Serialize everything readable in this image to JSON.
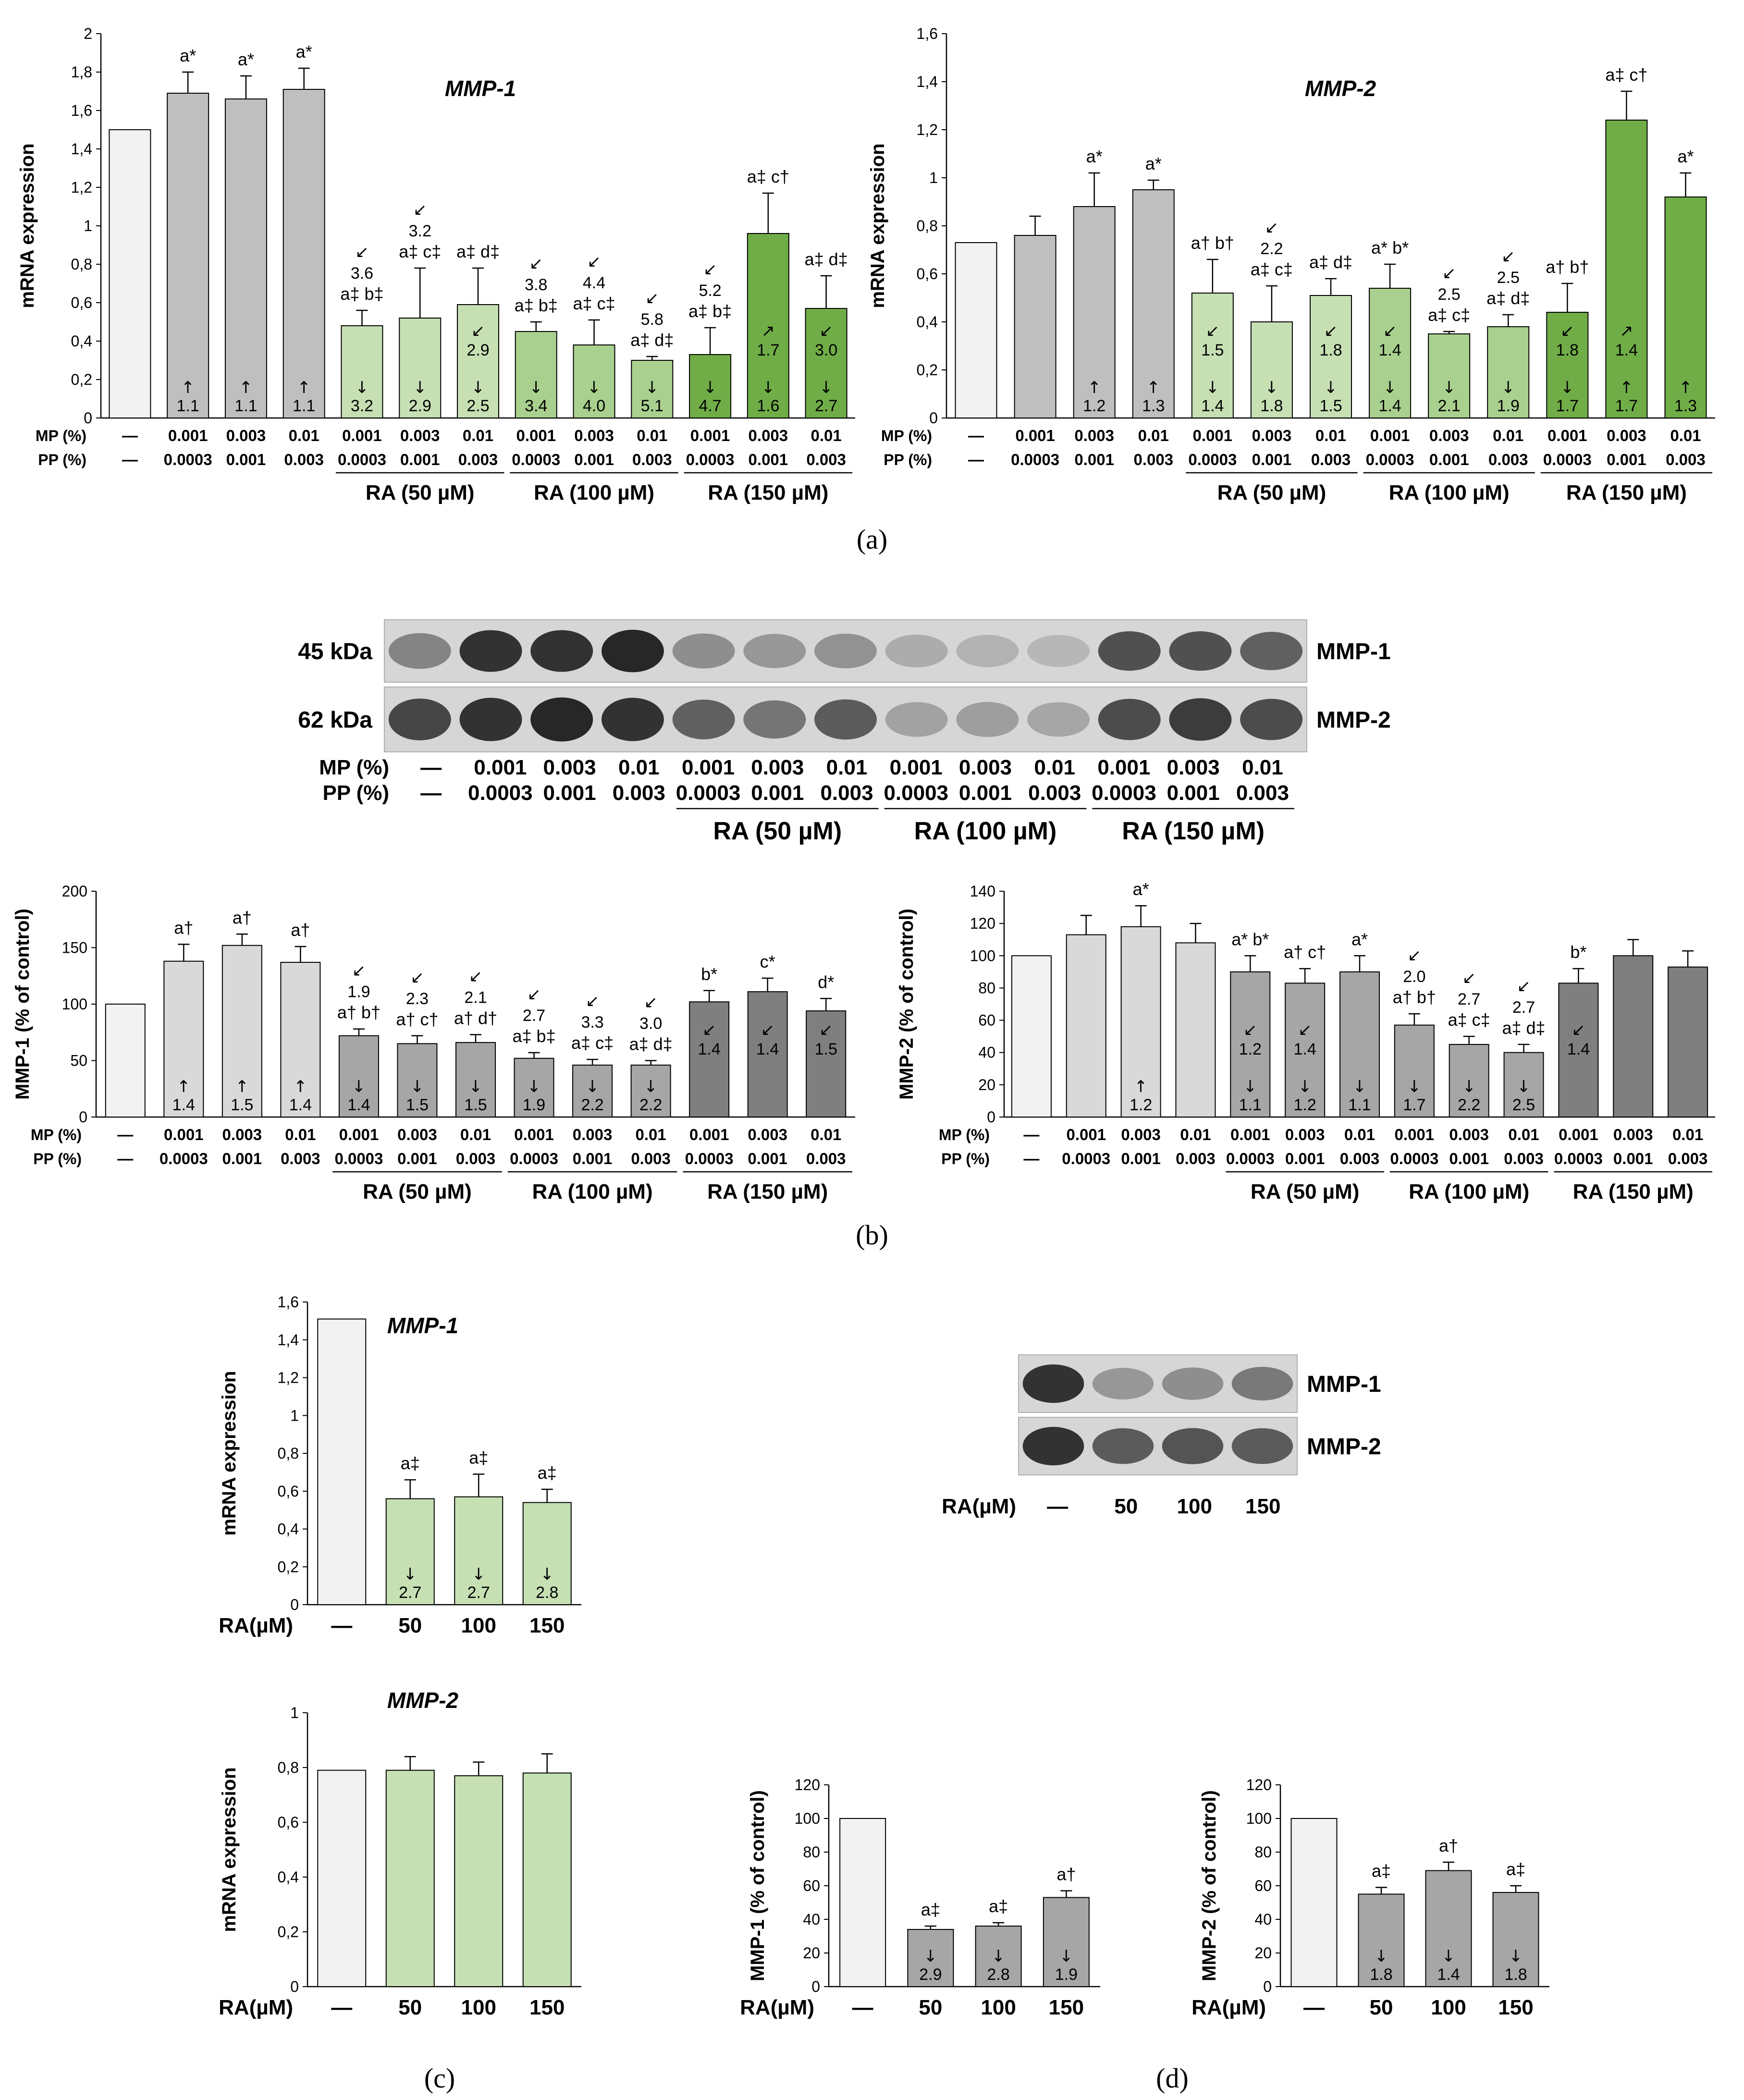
{
  "panel_labels": {
    "a": "(a)",
    "b": "(b)",
    "c": "(c)",
    "d": "(d)"
  },
  "common": {
    "mp_label": "MP (%)",
    "pp_label": "PP (%)",
    "dash": "—",
    "mp_values": [
      "—",
      "0.001",
      "0.003",
      "0.01",
      "0.001",
      "0.003",
      "0.01",
      "0.001",
      "0.003",
      "0.01",
      "0.001",
      "0.003",
      "0.01"
    ],
    "pp_values": [
      "—",
      "0.0003",
      "0.001",
      "0.003",
      "0.0003",
      "0.001",
      "0.003",
      "0.0003",
      "0.001",
      "0.003",
      "0.0003",
      "0.001",
      "0.003"
    ],
    "groups": [
      "RA (50 µM)",
      "RA (100 µM)",
      "RA (150 µM)"
    ],
    "ra_label": "RA(µM)",
    "ra_values": [
      "—",
      "50",
      "100",
      "150"
    ]
  },
  "colors": {
    "control": "#f2f2f2",
    "grey_bar": "#bfbfbf",
    "light_green": "#c6e0b4",
    "mid_green": "#a9d08e",
    "dark_green": "#70ad47",
    "light_grey": "#d9d9d9",
    "mid_grey": "#a6a6a6",
    "dark_grey": "#7f7f7f"
  },
  "blot_b": {
    "kda": [
      "45 kDa",
      "62 kDa"
    ],
    "proteins": [
      "MMP-1",
      "MMP-2"
    ],
    "mmp1_intensity": [
      0.55,
      0.95,
      0.95,
      1.0,
      0.5,
      0.45,
      0.48,
      0.35,
      0.32,
      0.3,
      0.8,
      0.8,
      0.72
    ],
    "mmp2_intensity": [
      0.85,
      0.95,
      1.0,
      0.95,
      0.72,
      0.62,
      0.75,
      0.4,
      0.42,
      0.38,
      0.82,
      0.9,
      0.82
    ]
  },
  "blot_d": {
    "proteins": [
      "MMP-1",
      "MMP-2"
    ],
    "mmp1_intensity": [
      0.95,
      0.45,
      0.5,
      0.6
    ],
    "mmp2_intensity": [
      0.95,
      0.75,
      0.78,
      0.75
    ]
  },
  "chart_data": [
    {
      "id": "a1",
      "type": "bar",
      "title": "MMP-1",
      "ylabel": "mRNA expression",
      "ylim": [
        0,
        2
      ],
      "yticks": [
        "0",
        "0,2",
        "0,4",
        "0,6",
        "0,8",
        "1",
        "1,2",
        "1,4",
        "1,6",
        "1,8",
        "2"
      ],
      "categories": [
        "control",
        "MP0.001/PP0.0003",
        "MP0.003/PP0.001",
        "MP0.01/PP0.003",
        "RA50 0.001",
        "RA50 0.003",
        "RA50 0.01",
        "RA100 0.001",
        "RA100 0.003",
        "RA100 0.01",
        "RA150 0.001",
        "RA150 0.003",
        "RA150 0.01"
      ],
      "values": [
        1.5,
        1.69,
        1.66,
        1.71,
        0.48,
        0.52,
        0.59,
        0.45,
        0.38,
        0.3,
        0.33,
        0.96,
        0.57
      ],
      "errors": [
        0,
        0.11,
        0.12,
        0.11,
        0.08,
        0.26,
        0.19,
        0.05,
        0.13,
        0.02,
        0.14,
        0.21,
        0.17
      ],
      "labels": [
        "",
        "a*",
        "a*",
        "a*",
        "a‡ b‡",
        "a‡ c‡",
        "a‡ d‡",
        "a‡ b‡",
        "a‡ c‡",
        "a‡ d‡",
        "a‡ b‡",
        "a‡ c†",
        "a‡ d‡"
      ],
      "bottom_values": [
        "",
        "1.1",
        "1.1",
        "1.1",
        "3.2",
        "2.9",
        "2.5",
        "3.4",
        "4.0",
        "5.1",
        "4.7",
        "1.6",
        "2.7"
      ],
      "bottom_arrows": [
        "",
        "↑",
        "↑",
        "↑",
        "↓",
        "↓",
        "↓",
        "↓",
        "↓",
        "↓",
        "↓",
        "↓",
        "↓"
      ],
      "mid_values": [
        "",
        "",
        "",
        "",
        "3.6",
        "3.2",
        "2.9",
        "3.8",
        "4.4",
        "5.8",
        "5.2",
        "1.7",
        "3.0"
      ],
      "mid_arrows": [
        "",
        "",
        "",
        "",
        "↙",
        "↙",
        "↙",
        "↙",
        "↙",
        "↙",
        "↙",
        "↗",
        "↙"
      ]
    },
    {
      "id": "a2",
      "type": "bar",
      "title": "MMP-2",
      "ylabel": "mRNA expression",
      "ylim": [
        0,
        1.6
      ],
      "yticks": [
        "0",
        "0,2",
        "0,4",
        "0,6",
        "0,8",
        "1",
        "1,2",
        "1,4",
        "1,6"
      ],
      "values": [
        0.73,
        0.76,
        0.88,
        0.95,
        0.52,
        0.4,
        0.51,
        0.54,
        0.35,
        0.38,
        0.44,
        1.24,
        0.92
      ],
      "errors": [
        0,
        0.08,
        0.14,
        0.04,
        0.14,
        0.15,
        0.07,
        0.1,
        0.01,
        0.05,
        0.12,
        0.12,
        0.1
      ],
      "labels": [
        "",
        "",
        "a*",
        "a*",
        "a† b†",
        "a‡ c‡",
        "a‡ d‡",
        "a* b*",
        "a‡ c‡",
        "a‡ d‡",
        "a† b†",
        "a‡ c†",
        "a*"
      ],
      "bottom_values": [
        "",
        "",
        "1.2",
        "1.3",
        "1.4",
        "1.8",
        "1.5",
        "1.4",
        "2.1",
        "1.9",
        "1.7",
        "1.7",
        "1.3"
      ],
      "bottom_arrows": [
        "",
        "",
        "↑",
        "↑",
        "↓",
        "↓",
        "↓",
        "↓",
        "↓",
        "↓",
        "↓",
        "↑",
        "↑"
      ],
      "mid_values": [
        "",
        "",
        "",
        "",
        "1.5",
        "2.2",
        "1.8",
        "1.4",
        "2.5",
        "2.5",
        "1.8",
        "1.4",
        ""
      ],
      "mid_arrows": [
        "",
        "",
        "",
        "",
        "↙",
        "↙",
        "↙",
        "↙",
        "↙",
        "↙",
        "↙",
        "↗",
        ""
      ]
    },
    {
      "id": "b1",
      "type": "bar",
      "ylabel": "MMP-1 (% of control)",
      "ylim": [
        0,
        200
      ],
      "yticks": [
        "0",
        "50",
        "100",
        "150",
        "200"
      ],
      "values": [
        100,
        138,
        152,
        137,
        72,
        65,
        66,
        52,
        46,
        46,
        102,
        111,
        94
      ],
      "errors": [
        0,
        15,
        10,
        14,
        6,
        7,
        7,
        5,
        5,
        4,
        10,
        12,
        11
      ],
      "labels": [
        "",
        "a†",
        "a†",
        "a†",
        "a† b†",
        "a† c†",
        "a† d†",
        "a‡ b‡",
        "a‡ c‡",
        "a‡ d‡",
        "b*",
        "c*",
        "d*"
      ],
      "bottom_values": [
        "",
        "1.4",
        "1.5",
        "1.4",
        "1.4",
        "1.5",
        "1.5",
        "1.9",
        "2.2",
        "2.2",
        "",
        "",
        ""
      ],
      "bottom_arrows": [
        "",
        "↑",
        "↑",
        "↑",
        "↓",
        "↓",
        "↓",
        "↓",
        "↓",
        "↓",
        "",
        "",
        ""
      ],
      "mid_values": [
        "",
        "",
        "",
        "",
        "1.9",
        "2.3",
        "2.1",
        "2.7",
        "3.3",
        "3.0",
        "1.4",
        "1.4",
        "1.5"
      ],
      "mid_arrows": [
        "",
        "",
        "",
        "",
        "↙",
        "↙",
        "↙",
        "↙",
        "↙",
        "↙",
        "↙",
        "↙",
        "↙"
      ]
    },
    {
      "id": "b2",
      "type": "bar",
      "ylabel": "MMP-2 (% of control)",
      "ylim": [
        0,
        140
      ],
      "yticks": [
        "0",
        "20",
        "40",
        "60",
        "80",
        "100",
        "120",
        "140"
      ],
      "values": [
        100,
        113,
        118,
        108,
        90,
        83,
        90,
        57,
        45,
        40,
        83,
        100,
        93
      ],
      "errors": [
        0,
        12,
        13,
        12,
        10,
        9,
        10,
        7,
        5,
        5,
        9,
        10,
        10
      ],
      "labels": [
        "",
        "",
        "a*",
        "",
        "a* b*",
        "a† c†",
        "a*",
        "a† b†",
        "a‡ c‡",
        "a‡ d‡",
        "b*",
        "",
        ""
      ],
      "bottom_values": [
        "",
        "",
        "1.2",
        "",
        "1.1",
        "1.2",
        "1.1",
        "1.7",
        "2.2",
        "2.5",
        "",
        "",
        ""
      ],
      "bottom_arrows": [
        "",
        "",
        "↑",
        "",
        "↓",
        "↓",
        "↓",
        "↓",
        "↓",
        "↓",
        "",
        "",
        ""
      ],
      "mid_values": [
        "",
        "",
        "",
        "",
        "1.2",
        "1.4",
        "",
        "2.0",
        "2.7",
        "2.7",
        "1.4",
        "",
        ""
      ],
      "mid_arrows": [
        "",
        "",
        "",
        "",
        "↙",
        "↙",
        "",
        "↙",
        "↙",
        "↙",
        "↙",
        "",
        ""
      ]
    },
    {
      "id": "c1",
      "type": "bar",
      "title": "MMP-1",
      "ylabel": "mRNA expression",
      "ylim": [
        0,
        1.6
      ],
      "yticks": [
        "0",
        "0,2",
        "0,4",
        "0,6",
        "0,8",
        "1",
        "1,2",
        "1,4",
        "1,6"
      ],
      "categories": [
        "—",
        "50",
        "100",
        "150"
      ],
      "values": [
        1.51,
        0.56,
        0.57,
        0.54
      ],
      "errors": [
        0,
        0.1,
        0.12,
        0.07
      ],
      "labels": [
        "",
        "a‡",
        "a‡",
        "a‡"
      ],
      "bottom_values": [
        "",
        "2.7",
        "2.7",
        "2.8"
      ],
      "bottom_arrows": [
        "",
        "↓",
        "↓",
        "↓"
      ]
    },
    {
      "id": "c2",
      "type": "bar",
      "title": "MMP-2",
      "ylabel": "mRNA expression",
      "ylim": [
        0,
        1
      ],
      "yticks": [
        "0",
        "0,2",
        "0,4",
        "0,6",
        "0,8",
        "1"
      ],
      "categories": [
        "—",
        "50",
        "100",
        "150"
      ],
      "values": [
        0.79,
        0.79,
        0.77,
        0.78
      ],
      "errors": [
        0,
        0.05,
        0.05,
        0.07
      ],
      "labels": [
        "",
        "",
        "",
        ""
      ],
      "bottom_values": [
        "",
        "",
        "",
        ""
      ],
      "bottom_arrows": [
        "",
        "",
        "",
        ""
      ]
    },
    {
      "id": "d1",
      "type": "bar",
      "ylabel": "MMP-1 (% of control)",
      "ylim": [
        0,
        120
      ],
      "yticks": [
        "0",
        "20",
        "40",
        "60",
        "80",
        "100",
        "120"
      ],
      "categories": [
        "—",
        "50",
        "100",
        "150"
      ],
      "values": [
        100,
        34,
        36,
        53
      ],
      "errors": [
        0,
        2,
        2,
        4
      ],
      "labels": [
        "",
        "a‡",
        "a‡",
        "a†"
      ],
      "bottom_values": [
        "",
        "2.9",
        "2.8",
        "1.9"
      ],
      "bottom_arrows": [
        "",
        "↓",
        "↓",
        "↓"
      ]
    },
    {
      "id": "d2",
      "type": "bar",
      "ylabel": "MMP-2 (% of control)",
      "ylim": [
        0,
        120
      ],
      "yticks": [
        "0",
        "20",
        "40",
        "60",
        "80",
        "100",
        "120"
      ],
      "categories": [
        "—",
        "50",
        "100",
        "150"
      ],
      "values": [
        100,
        55,
        69,
        56
      ],
      "errors": [
        0,
        4,
        5,
        4
      ],
      "labels": [
        "",
        "a‡",
        "a†",
        "a‡"
      ],
      "bottom_values": [
        "",
        "1.8",
        "1.4",
        "1.8"
      ],
      "bottom_arrows": [
        "",
        "↓",
        "↓",
        "↓"
      ]
    }
  ]
}
